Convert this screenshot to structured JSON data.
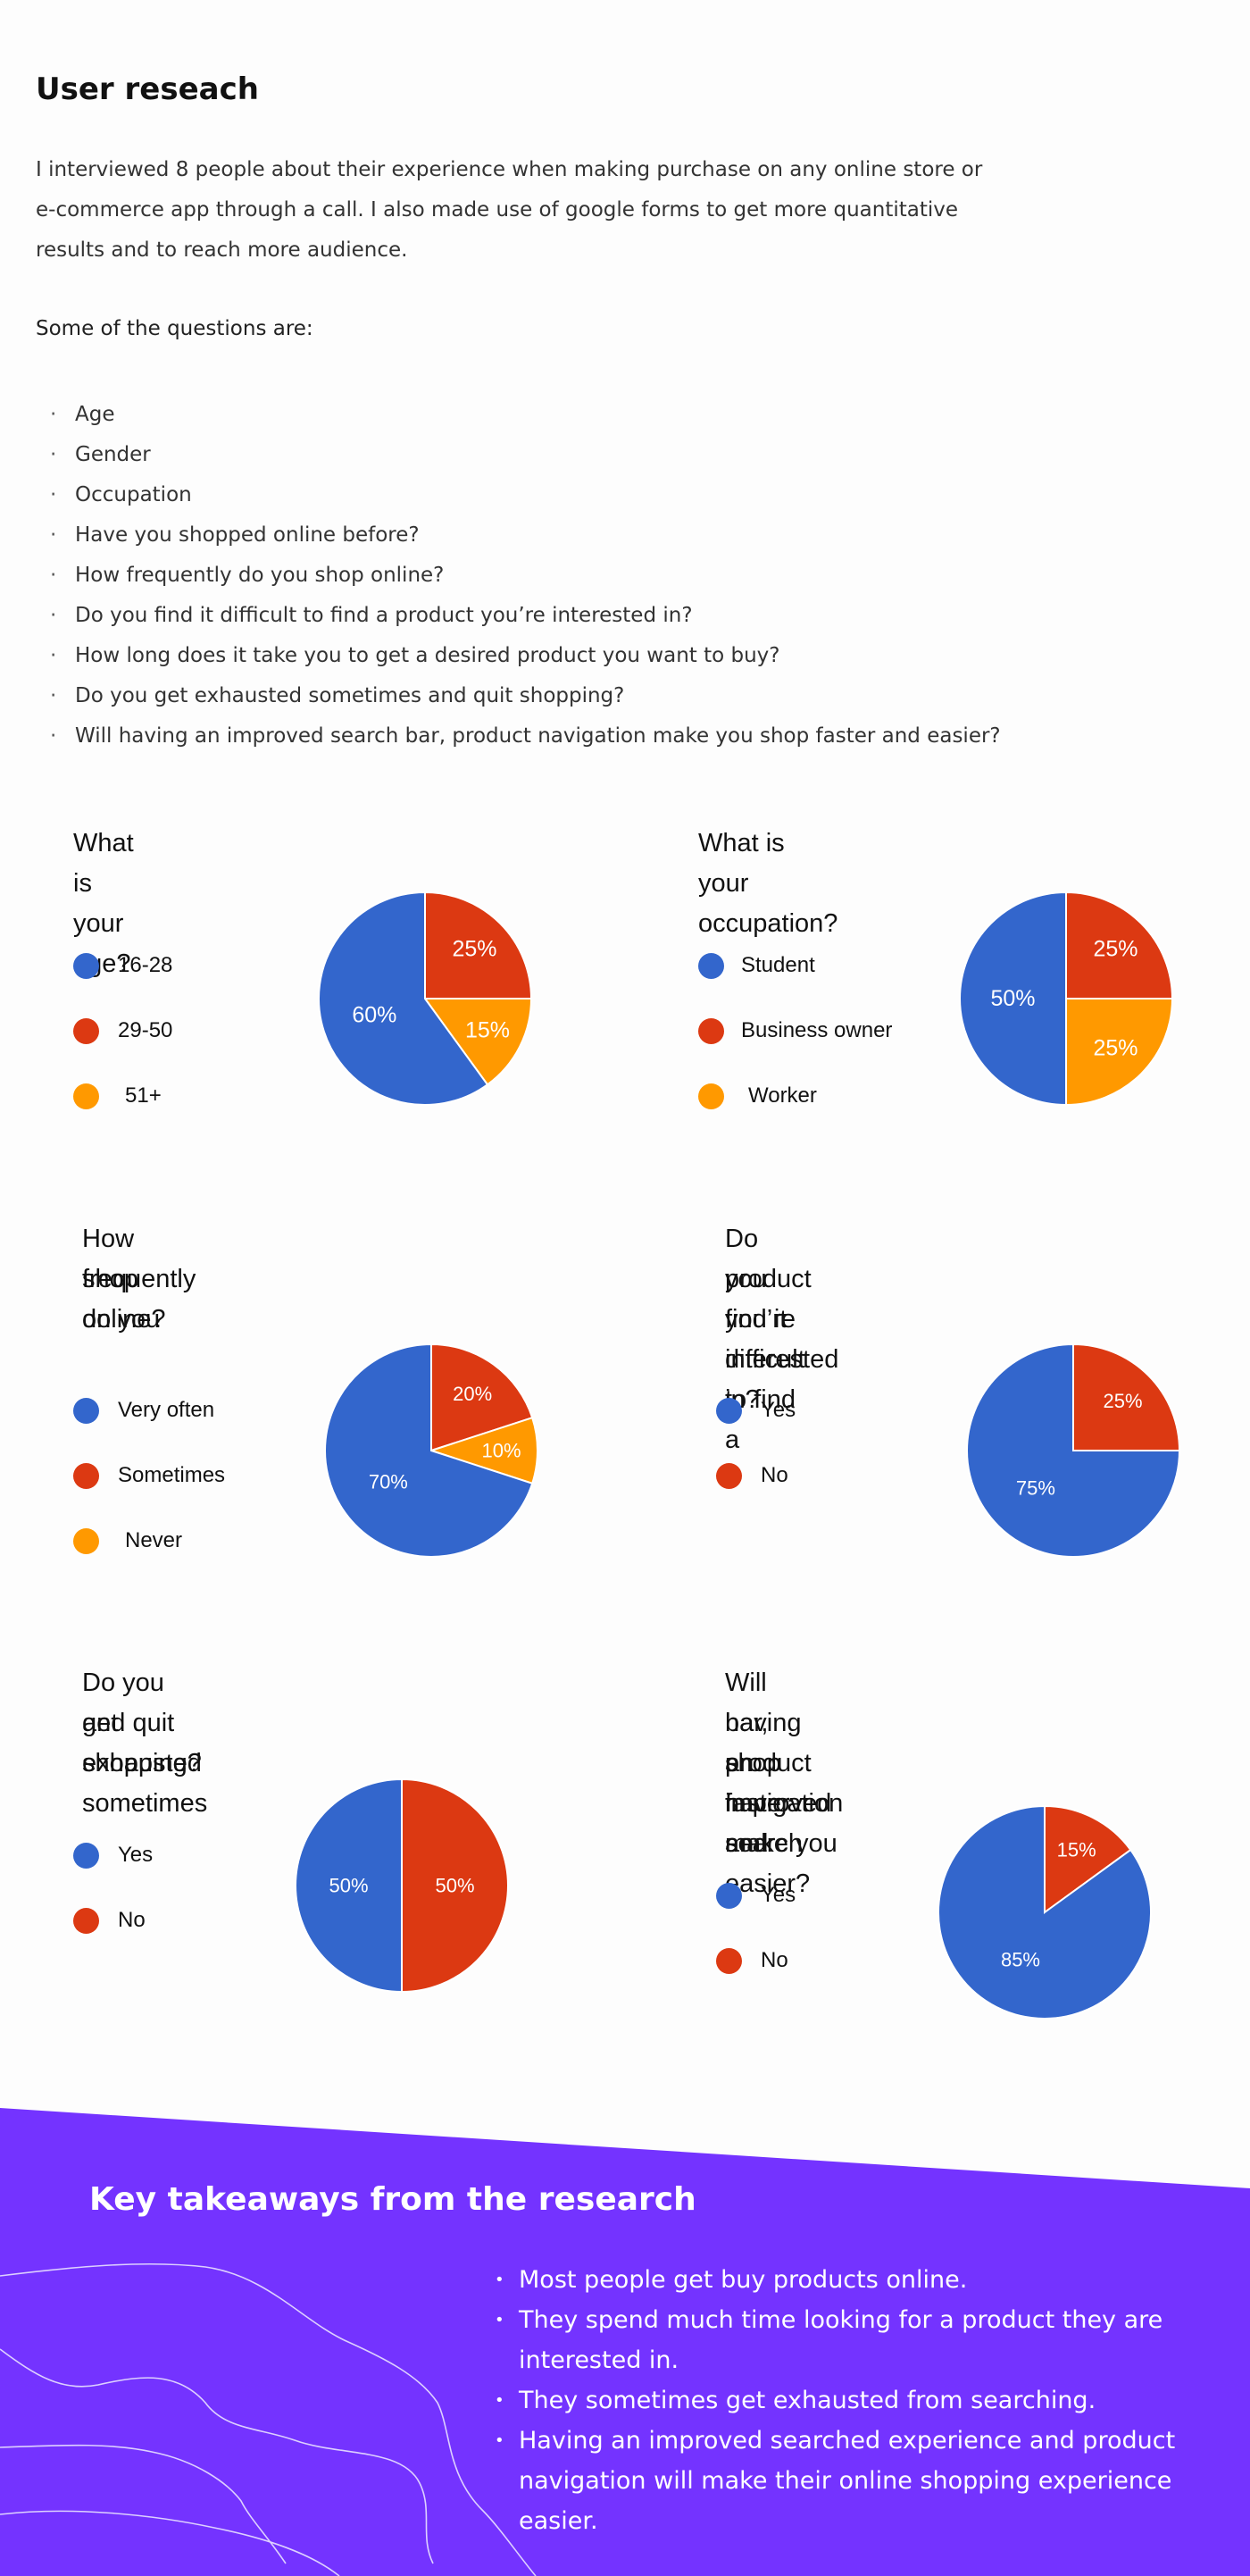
{
  "research": {
    "title": "User reseach",
    "intro_lines": [
      "I interviewed 8 people about their experience when making purchase on any online store or",
      "e-commerce app through a call. I also made use of google forms to get more quantitative",
      "results and to reach more audience."
    ],
    "questions_heading": "Some of the questions are:",
    "questions": [
      "Age",
      "Gender",
      "Occupation",
      "Have you shopped online before?",
      "How frequently do you shop online?",
      "Do you find it difficult to find a product you’re interested in?",
      "How long does it take you to get a desired product you want to buy?",
      "Do you get exhausted sometimes and quit shopping?",
      "Will having an improved search bar, product navigation make you shop faster and easier?"
    ]
  },
  "colors": {
    "blue": "#3366cc",
    "red": "#dc3912",
    "orange": "#ff9900",
    "purple": "#7433ff"
  },
  "chart_data": [
    {
      "type": "pie",
      "title_lines": [
        "What is your age?"
      ],
      "series": [
        {
          "name": "16-28",
          "value": 60,
          "label": "60%",
          "color": "#3366cc"
        },
        {
          "name": "29-50",
          "value": 25,
          "label": "25%",
          "color": "#dc3912"
        },
        {
          "name": "51+",
          "value": 15,
          "label": "15%",
          "color": "#ff9900"
        }
      ]
    },
    {
      "type": "pie",
      "title_lines": [
        "What is your occupation?"
      ],
      "series": [
        {
          "name": "Student",
          "value": 50,
          "label": "50%",
          "color": "#3366cc"
        },
        {
          "name": "Business owner",
          "value": 25,
          "label": "25%",
          "color": "#dc3912"
        },
        {
          "name": "Worker",
          "value": 25,
          "label": "25%",
          "color": "#ff9900"
        }
      ]
    },
    {
      "type": "pie",
      "title_lines": [
        "How frequently do you",
        "shop online?"
      ],
      "series": [
        {
          "name": "Very often",
          "value": 70,
          "label": "70%",
          "color": "#3366cc"
        },
        {
          "name": "Sometimes",
          "value": 20,
          "label": "20%",
          "color": "#dc3912"
        },
        {
          "name": "Never",
          "value": 10,
          "label": "10%",
          "color": "#ff9900"
        }
      ]
    },
    {
      "type": "pie",
      "title_lines": [
        "Do you find it difficult to find a",
        "product you’re interested in?"
      ],
      "series": [
        {
          "name": "Yes",
          "value": 75,
          "label": "75%",
          "color": "#3366cc"
        },
        {
          "name": "No",
          "value": 25,
          "label": "25%",
          "color": "#dc3912"
        }
      ]
    },
    {
      "type": "pie",
      "title_lines": [
        "Do you get exhausted sometimes",
        "and quit shopping?"
      ],
      "series": [
        {
          "name": "Yes",
          "value": 50,
          "label": "50%",
          "color": "#3366cc"
        },
        {
          "name": "No",
          "value": 50,
          "label": "50%",
          "color": "#dc3912"
        }
      ]
    },
    {
      "type": "pie",
      "title_lines": [
        "Will having an improved search",
        "bar, product navigation make you",
        "shop faster and easier?"
      ],
      "series": [
        {
          "name": "Yes",
          "value": 85,
          "label": "85%",
          "color": "#3366cc"
        },
        {
          "name": "No",
          "value": 15,
          "label": "15%",
          "color": "#dc3912"
        }
      ]
    }
  ],
  "takeaways": {
    "title": "Key takeaways from the research",
    "items": [
      "Most people get buy products online.",
      "They spend much time looking for a product they are interested in.",
      "They sometimes get exhausted from searching.",
      "Having an improved searched experience and product navigation will make their online shopping experience easier."
    ]
  }
}
